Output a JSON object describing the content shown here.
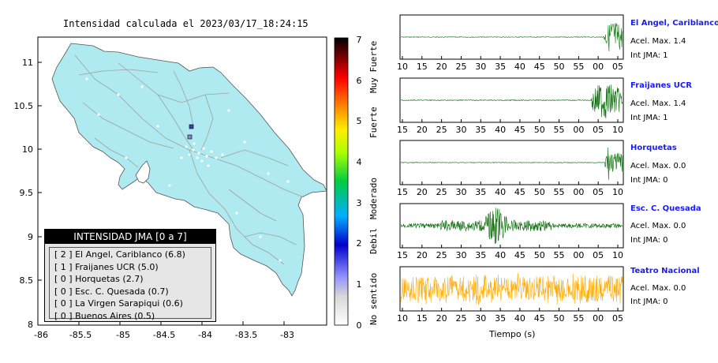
{
  "map": {
    "title": "Intensidad calculada el 2023/03/17_18:24:15",
    "x_ticks": [
      "-86",
      "-85.5",
      "-85",
      "-84.5",
      "-84",
      "-83.5",
      "-83"
    ],
    "y_ticks": [
      "11",
      "10.5",
      "10",
      "9.5",
      "9",
      "8.5",
      "8"
    ],
    "colors": {
      "land": "#aeeaf0",
      "roads": "#a0a0a0",
      "border": "#000000"
    }
  },
  "legend": {
    "title": "INTENSIDAD JMA [0 a 7]",
    "rows": [
      "[ 2 ]  El Angel, Cariblanco (6.8)",
      "[ 1 ]  Fraijanes UCR (5.0)",
      "[ 0 ]  Horquetas (2.7)",
      "[ 0 ]  Esc. C. Quesada (0.7)",
      "[ 0 ]  La Virgen Sarapiqui (0.6)",
      "[ 0 ]  Buenos Aires (0.5)"
    ]
  },
  "colorbar": {
    "ticks": [
      "0",
      "1",
      "2",
      "3",
      "4",
      "5",
      "6",
      "7"
    ],
    "labels": [
      "No sentido",
      "Debil",
      "Moderado",
      "Fuerte",
      "Muy Fuerte"
    ]
  },
  "waveforms": {
    "time_axis_label": "Tiempo (s)",
    "panels": [
      {
        "name": "El Angel, Cariblanco",
        "accel": "Acel. Max. 1.4",
        "int": "Int JMA: 1",
        "ticks": [
          "10",
          "15",
          "20",
          "25",
          "30",
          "35",
          "40",
          "45",
          "50",
          "55",
          "00",
          "05"
        ],
        "color": "#1a7a1a"
      },
      {
        "name": "Fraijanes UCR",
        "accel": "Acel. Max. 1.4",
        "int": "Int JMA: 1",
        "ticks": [
          "15",
          "20",
          "25",
          "30",
          "35",
          "40",
          "45",
          "50",
          "55",
          "00",
          "05",
          "10"
        ],
        "color": "#0a6a0a"
      },
      {
        "name": "Horquetas",
        "accel": "Acel. Max. 0.0",
        "int": "Int JMA: 0",
        "ticks": [
          "15",
          "20",
          "25",
          "30",
          "35",
          "40",
          "45",
          "50",
          "55",
          "00",
          "05",
          "10"
        ],
        "color": "#0a6a0a"
      },
      {
        "name": "Esc. C. Quesada",
        "accel": "Acel. Max. 0.0",
        "int": "Int JMA: 0",
        "ticks": [
          "15",
          "20",
          "25",
          "30",
          "35",
          "40",
          "45",
          "50",
          "55",
          "00",
          "05",
          "10"
        ],
        "color": "#0a6a0a"
      },
      {
        "name": "Teatro Nacional",
        "accel": "Acel. Max. 0.0",
        "int": "Int JMA: 0",
        "ticks": [
          "10",
          "15",
          "20",
          "25",
          "30",
          "35",
          "40",
          "45",
          "50",
          "55",
          "00",
          "05"
        ],
        "color": "#ffaa00"
      }
    ]
  }
}
